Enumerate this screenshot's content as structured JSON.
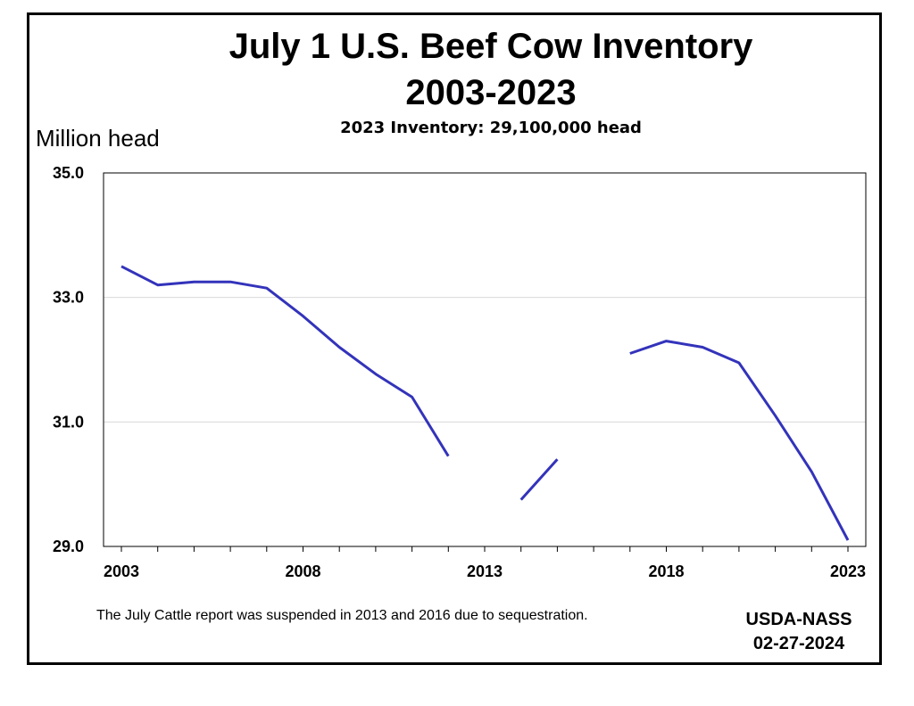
{
  "chart_data": {
    "type": "line",
    "title": "July 1 U.S. Beef Cow Inventory",
    "title_line2": "2003-2023",
    "subtitle": "2023 Inventory: 29,100,000 head",
    "ylabel": "Million head",
    "xlabel": "",
    "ylim": [
      29.0,
      35.0
    ],
    "xlim": [
      2003,
      2023
    ],
    "y_ticks": [
      "29.0",
      "31.0",
      "33.0",
      "35.0"
    ],
    "y_tick_values": [
      29.0,
      31.0,
      33.0,
      35.0
    ],
    "x_ticks": [
      "2003",
      "2008",
      "2013",
      "2018",
      "2023"
    ],
    "x_tick_values": [
      2003,
      2008,
      2013,
      2018,
      2023
    ],
    "grid": "horizontal",
    "series": [
      {
        "color": "#3333bb",
        "points": [
          {
            "x": 2003,
            "y": 33.5
          },
          {
            "x": 2004,
            "y": 33.2
          },
          {
            "x": 2005,
            "y": 33.25
          },
          {
            "x": 2006,
            "y": 33.25
          },
          {
            "x": 2007,
            "y": 33.15
          },
          {
            "x": 2008,
            "y": 32.7
          },
          {
            "x": 2009,
            "y": 32.2
          },
          {
            "x": 2010,
            "y": 31.77
          },
          {
            "x": 2011,
            "y": 31.4
          },
          {
            "x": 2012,
            "y": 30.45
          },
          {
            "x": 2013,
            "y": null
          },
          {
            "x": 2014,
            "y": 29.75
          },
          {
            "x": 2015,
            "y": 30.4
          },
          {
            "x": 2016,
            "y": null
          },
          {
            "x": 2017,
            "y": 32.1
          },
          {
            "x": 2018,
            "y": 32.3
          },
          {
            "x": 2019,
            "y": 32.2
          },
          {
            "x": 2020,
            "y": 31.95
          },
          {
            "x": 2021,
            "y": 31.1
          },
          {
            "x": 2022,
            "y": 30.2
          },
          {
            "x": 2023,
            "y": 29.1
          }
        ]
      }
    ],
    "footnote": "The July Cattle report was suspended in 2013 and 2016 due to sequestration.",
    "source_line1": "USDA-NASS",
    "source_line2": "02-27-2024"
  }
}
